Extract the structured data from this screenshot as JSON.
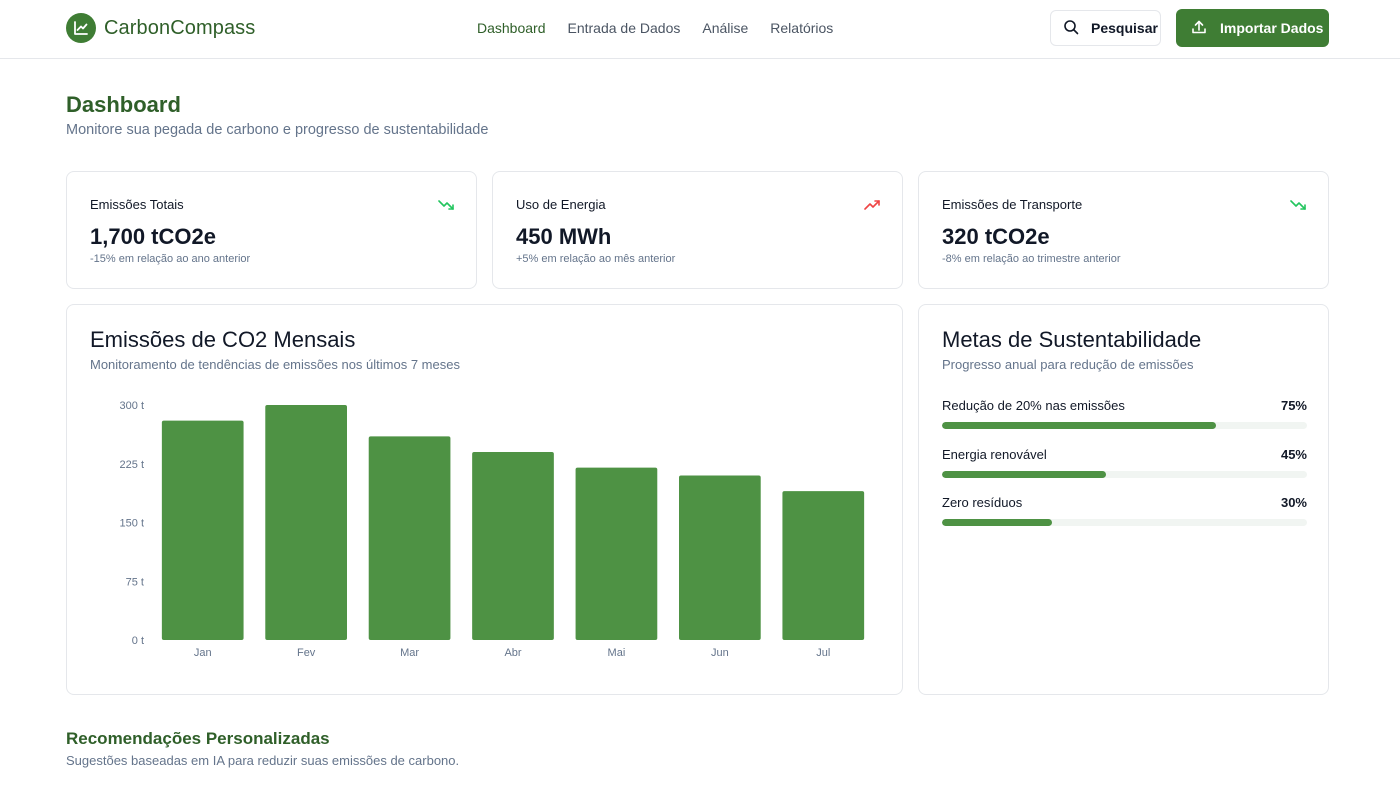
{
  "app": {
    "name": "CarbonCompass"
  },
  "nav": {
    "items": [
      {
        "label": "Dashboard",
        "active": true
      },
      {
        "label": "Entrada de Dados",
        "active": false
      },
      {
        "label": "Análise",
        "active": false
      },
      {
        "label": "Relatórios",
        "active": false
      }
    ]
  },
  "actions": {
    "search_label": "Pesquisar",
    "import_label": "Importar Dados"
  },
  "page": {
    "title": "Dashboard",
    "subtitle": "Monitore sua pegada de carbono e progresso de sustentabilidade"
  },
  "stats": [
    {
      "label": "Emissões Totais",
      "value": "1,700 tCO2e",
      "note": "-15% em relação ao ano anterior",
      "trend": "down",
      "trend_color": "#22c55e"
    },
    {
      "label": "Uso de Energia",
      "value": "450 MWh",
      "note": "+5% em relação ao mês anterior",
      "trend": "up",
      "trend_color": "#ef4444"
    },
    {
      "label": "Emissões de Transporte",
      "value": "320 tCO2e",
      "note": "-8% em relação ao trimestre anterior",
      "trend": "down",
      "trend_color": "#22c55e"
    }
  ],
  "chart": {
    "title": "Emissões de CO2 Mensais",
    "subtitle": "Monitoramento de tendências de emissões nos últimos 7 meses"
  },
  "chart_data": {
    "type": "bar",
    "categories": [
      "Jan",
      "Fev",
      "Mar",
      "Abr",
      "Mai",
      "Jun",
      "Jul"
    ],
    "values": [
      280,
      300,
      260,
      240,
      220,
      210,
      190
    ],
    "yticks": [
      "0 t",
      "75 t",
      "150 t",
      "225 t",
      "300 t"
    ],
    "ytick_values": [
      0,
      75,
      150,
      225,
      300
    ],
    "ylim": [
      0,
      300
    ],
    "bar_color": "#4e9244",
    "grid": false
  },
  "goals": {
    "title": "Metas de Sustentabilidade",
    "subtitle": "Progresso anual para redução de emissões",
    "items": [
      {
        "label": "Redução de 20% nas emissões",
        "percent_label": "75%",
        "percent": 75
      },
      {
        "label": "Energia renovável",
        "percent_label": "45%",
        "percent": 45
      },
      {
        "label": "Zero resíduos",
        "percent_label": "30%",
        "percent": 30
      }
    ]
  },
  "recommendations": {
    "title": "Recomendações Personalizadas",
    "subtitle": "Sugestões baseadas em IA para reduzir suas emissões de carbono."
  },
  "colors": {
    "brand": "#3f7d34",
    "brand_text": "#2f5f29",
    "muted": "#64748b"
  }
}
